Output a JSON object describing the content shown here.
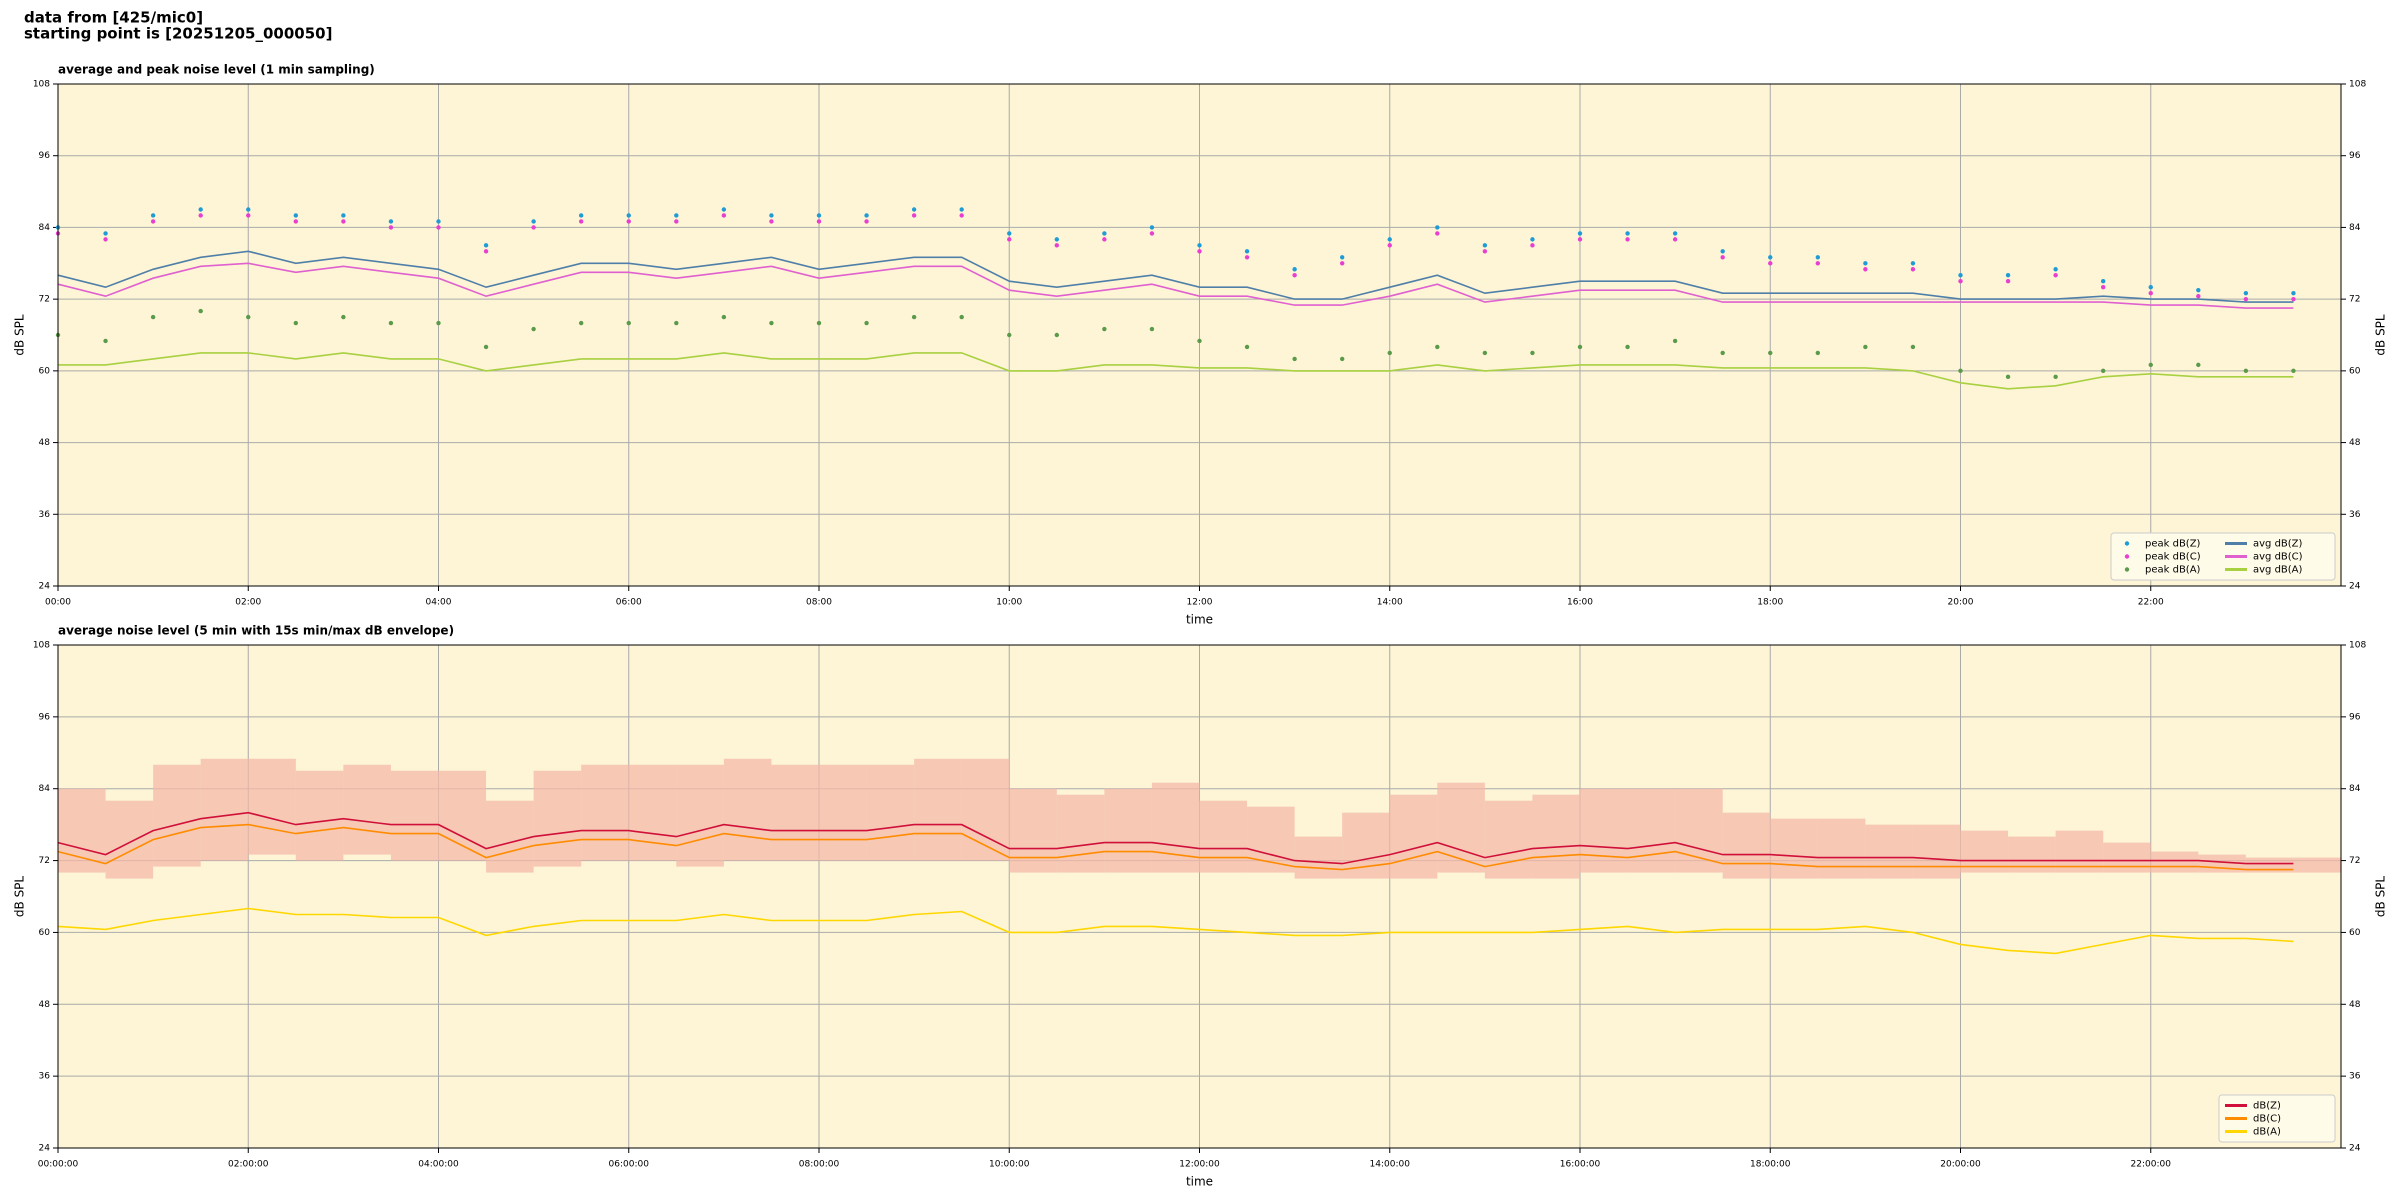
{
  "header": [
    "data from [425/mic0]",
    "starting point is [20251205_000050]"
  ],
  "chart_data": [
    {
      "type": "line",
      "title": "average and peak noise level (1 min sampling)",
      "x_label": "time",
      "y_label": "dB SPL",
      "xlim": [
        0,
        24
      ],
      "ylim": [
        24,
        108
      ],
      "xticks": [
        {
          "value": 0,
          "label": "00:00"
        },
        {
          "value": 2,
          "label": "02:00"
        },
        {
          "value": 4,
          "label": "04:00"
        },
        {
          "value": 6,
          "label": "06:00"
        },
        {
          "value": 8,
          "label": "08:00"
        },
        {
          "value": 10,
          "label": "10:00"
        },
        {
          "value": 12,
          "label": "12:00"
        },
        {
          "value": 14,
          "label": "14:00"
        },
        {
          "value": 16,
          "label": "16:00"
        },
        {
          "value": 18,
          "label": "18:00"
        },
        {
          "value": 20,
          "label": "20:00"
        },
        {
          "value": 22,
          "label": "22:00"
        }
      ],
      "yticks": [
        24,
        36,
        48,
        60,
        72,
        84,
        96,
        108
      ],
      "grid": true,
      "background": "#fdf5d6",
      "legend_loc": "lower right",
      "legend_columns": 2,
      "x": [
        0,
        0.5,
        1,
        1.5,
        2,
        2.5,
        3,
        3.5,
        4,
        4.5,
        5,
        5.5,
        6,
        6.5,
        7,
        7.5,
        8,
        8.5,
        9,
        9.5,
        10,
        10.5,
        11,
        11.5,
        12,
        12.5,
        13,
        13.5,
        14,
        14.5,
        15,
        15.5,
        16,
        16.5,
        17,
        17.5,
        18,
        18.5,
        19,
        19.5,
        20,
        20.5,
        21,
        21.5,
        22,
        22.5,
        23,
        23.5
      ],
      "series": [
        {
          "name": "peak dB(Z)",
          "style": "scatter",
          "color": "#1f9bd6",
          "values": [
            84,
            83,
            86,
            87,
            87,
            86,
            86,
            85,
            85,
            81,
            85,
            86,
            86,
            86,
            87,
            86,
            86,
            86,
            87,
            87,
            83,
            82,
            83,
            84,
            81,
            80,
            77,
            79,
            82,
            84,
            81,
            82,
            83,
            83,
            83,
            80,
            79,
            79,
            78,
            78,
            76,
            76,
            77,
            75,
            74,
            73.5,
            73,
            73
          ]
        },
        {
          "name": "peak dB(C)",
          "style": "scatter",
          "color": "#e83fd0",
          "values": [
            83,
            82,
            85,
            86,
            86,
            85,
            85,
            84,
            84,
            80,
            84,
            85,
            85,
            85,
            86,
            85,
            85,
            85,
            86,
            86,
            82,
            81,
            82,
            83,
            80,
            79,
            76,
            78,
            81,
            83,
            80,
            81,
            82,
            82,
            82,
            79,
            78,
            78,
            77,
            77,
            75,
            75,
            76,
            74,
            73,
            72.5,
            72,
            72
          ]
        },
        {
          "name": "peak dB(A)",
          "style": "scatter",
          "color": "#5a9a4a",
          "values": [
            66,
            65,
            69,
            70,
            69,
            68,
            69,
            68,
            68,
            64,
            67,
            68,
            68,
            68,
            69,
            68,
            68,
            68,
            69,
            69,
            66,
            66,
            67,
            67,
            65,
            64,
            62,
            62,
            63,
            64,
            63,
            63,
            64,
            64,
            65,
            63,
            63,
            63,
            64,
            64,
            60,
            59,
            59,
            60,
            61,
            61,
            60,
            60
          ]
        },
        {
          "name": "avg dB(Z)",
          "style": "line",
          "color": "#4f7fa8",
          "values": [
            76,
            74,
            77,
            79,
            80,
            78,
            79,
            78,
            77,
            74,
            76,
            78,
            78,
            77,
            78,
            79,
            77,
            78,
            79,
            79,
            75,
            74,
            75,
            76,
            74,
            74,
            72,
            72,
            74,
            76,
            73,
            74,
            75,
            75,
            75,
            73,
            73,
            73,
            73,
            73,
            72,
            72,
            72,
            72.5,
            72,
            72,
            71.5,
            71.5
          ]
        },
        {
          "name": "avg dB(C)",
          "style": "line",
          "color": "#e060d0",
          "values": [
            74.5,
            72.5,
            75.5,
            77.5,
            78,
            76.5,
            77.5,
            76.5,
            75.5,
            72.5,
            74.5,
            76.5,
            76.5,
            75.5,
            76.5,
            77.5,
            75.5,
            76.5,
            77.5,
            77.5,
            73.5,
            72.5,
            73.5,
            74.5,
            72.5,
            72.5,
            71,
            71,
            72.5,
            74.5,
            71.5,
            72.5,
            73.5,
            73.5,
            73.5,
            71.5,
            71.5,
            71.5,
            71.5,
            71.5,
            71.5,
            71.5,
            71.5,
            71.5,
            71,
            71,
            70.5,
            70.5
          ]
        },
        {
          "name": "avg dB(A)",
          "style": "line",
          "color": "#a8d040",
          "values": [
            61,
            61,
            62,
            63,
            63,
            62,
            63,
            62,
            62,
            60,
            61,
            62,
            62,
            62,
            63,
            62,
            62,
            62,
            63,
            63,
            60,
            60,
            61,
            61,
            60.5,
            60.5,
            60,
            60,
            60,
            61,
            60,
            60.5,
            61,
            61,
            61,
            60.5,
            60.5,
            60.5,
            60.5,
            60,
            58,
            57,
            57.5,
            59,
            59.5,
            59,
            59,
            59
          ]
        }
      ]
    },
    {
      "type": "line",
      "title": "average noise level (5 min with 15s min/max dB envelope)",
      "x_label": "time",
      "y_label": "dB SPL",
      "xlim": [
        0,
        24
      ],
      "ylim": [
        24,
        108
      ],
      "xticks": [
        {
          "value": 0,
          "label": "00:00:00"
        },
        {
          "value": 2,
          "label": "02:00:00"
        },
        {
          "value": 4,
          "label": "04:00:00"
        },
        {
          "value": 6,
          "label": "06:00:00"
        },
        {
          "value": 8,
          "label": "08:00:00"
        },
        {
          "value": 10,
          "label": "10:00:00"
        },
        {
          "value": 12,
          "label": "12:00:00"
        },
        {
          "value": 14,
          "label": "14:00:00"
        },
        {
          "value": 16,
          "label": "16:00:00"
        },
        {
          "value": 18,
          "label": "18:00:00"
        },
        {
          "value": 20,
          "label": "20:00:00"
        },
        {
          "value": 22,
          "label": "22:00:00"
        }
      ],
      "yticks": [
        24,
        36,
        48,
        60,
        72,
        84,
        96,
        108
      ],
      "grid": true,
      "background": "#fdf5d6",
      "legend_loc": "lower right",
      "legend_columns": 1,
      "x": [
        0,
        0.5,
        1,
        1.5,
        2,
        2.5,
        3,
        3.5,
        4,
        4.5,
        5,
        5.5,
        6,
        6.5,
        7,
        7.5,
        8,
        8.5,
        9,
        9.5,
        10,
        10.5,
        11,
        11.5,
        12,
        12.5,
        13,
        13.5,
        14,
        14.5,
        15,
        15.5,
        16,
        16.5,
        17,
        17.5,
        18,
        18.5,
        19,
        19.5,
        20,
        20.5,
        21,
        21.5,
        22,
        22.5,
        23,
        23.5
      ],
      "envelope": {
        "color": "#f4b8a8",
        "upper": [
          84,
          82,
          88,
          89,
          89,
          87,
          88,
          87,
          87,
          82,
          87,
          88,
          88,
          88,
          89,
          88,
          88,
          88,
          89,
          89,
          84,
          83,
          84,
          85,
          82,
          81,
          76,
          80,
          83,
          85,
          82,
          83,
          84,
          84,
          84,
          80,
          79,
          79,
          78,
          78,
          77,
          76,
          77,
          75,
          73.5,
          73,
          72.5,
          72.5
        ],
        "lower": [
          70,
          69,
          71,
          72,
          73,
          72,
          73,
          72,
          72,
          70,
          71,
          72,
          72,
          71,
          72,
          72,
          72,
          72,
          72,
          72,
          70,
          70,
          70,
          70,
          70,
          70,
          69,
          69,
          69,
          70,
          69,
          69,
          70,
          70,
          70,
          69,
          69,
          69,
          69,
          69,
          70,
          70,
          70,
          70,
          70,
          70,
          70,
          70
        ]
      },
      "series": [
        {
          "name": "dB(Z)",
          "style": "line",
          "color": "#d0103a",
          "values": [
            75,
            73,
            77,
            79,
            80,
            78,
            79,
            78,
            78,
            74,
            76,
            77,
            77,
            76,
            78,
            77,
            77,
            77,
            78,
            78,
            74,
            74,
            75,
            75,
            74,
            74,
            72,
            71.5,
            73,
            75,
            72.5,
            74,
            74.5,
            74,
            75,
            73,
            73,
            72.5,
            72.5,
            72.5,
            72,
            72,
            72,
            72,
            72,
            72,
            71.5,
            71.5
          ]
        },
        {
          "name": "dB(C)",
          "style": "line",
          "color": "#ff8c00",
          "values": [
            73.5,
            71.5,
            75.5,
            77.5,
            78,
            76.5,
            77.5,
            76.5,
            76.5,
            72.5,
            74.5,
            75.5,
            75.5,
            74.5,
            76.5,
            75.5,
            75.5,
            75.5,
            76.5,
            76.5,
            72.5,
            72.5,
            73.5,
            73.5,
            72.5,
            72.5,
            71,
            70.5,
            71.5,
            73.5,
            71,
            72.5,
            73,
            72.5,
            73.5,
            71.5,
            71.5,
            71,
            71,
            71,
            71,
            71,
            71,
            71,
            71,
            71,
            70.5,
            70.5
          ]
        },
        {
          "name": "dB(A)",
          "style": "line",
          "color": "#ffd700",
          "values": [
            61,
            60.5,
            62,
            63,
            64,
            63,
            63,
            62.5,
            62.5,
            59.5,
            61,
            62,
            62,
            62,
            63,
            62,
            62,
            62,
            63,
            63.5,
            60,
            60,
            61,
            61,
            60.5,
            60,
            59.5,
            59.5,
            60,
            60,
            60,
            60,
            60.5,
            61,
            60,
            60.5,
            60.5,
            60.5,
            61,
            60,
            58,
            57,
            56.5,
            58,
            59.5,
            59,
            59,
            58.5
          ]
        }
      ]
    }
  ]
}
